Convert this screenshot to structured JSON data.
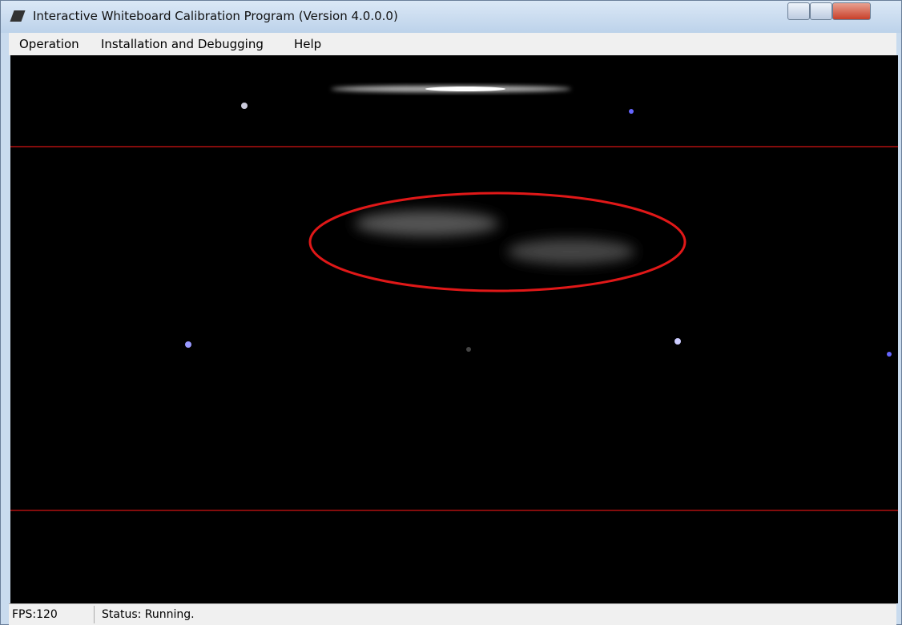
{
  "window": {
    "title": "Interactive Whiteboard Calibration Program (Version 4.0.0.0)"
  },
  "menu": {
    "items": [
      "Operation",
      "Installation and Debugging",
      "Help"
    ]
  },
  "status_bar": {
    "fps": "FPS:120",
    "status": "Status: Running."
  }
}
